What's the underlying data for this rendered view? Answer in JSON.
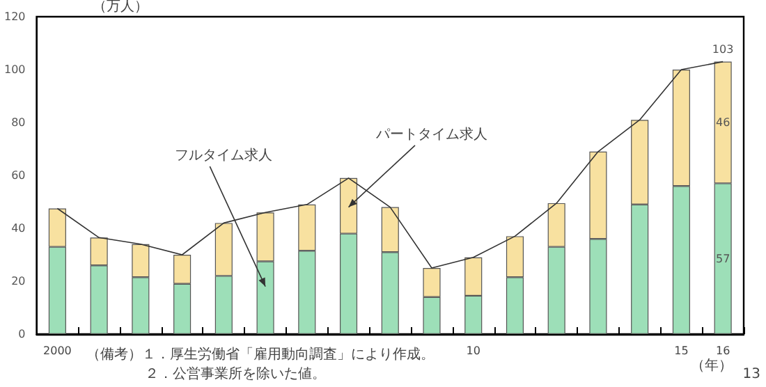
{
  "chart_data": {
    "type": "bar",
    "stacked": true,
    "ylabel": "（万人）",
    "xlabel": "（年）",
    "categories": [
      "2000",
      null,
      null,
      null,
      null,
      null,
      null,
      null,
      null,
      null,
      "10",
      null,
      null,
      null,
      null,
      "15",
      "16"
    ],
    "series": [
      {
        "name": "フルタイム求人",
        "color": "#9ddfb8",
        "values": [
          33,
          26,
          21.5,
          19,
          22,
          27.5,
          31.5,
          38,
          31,
          14,
          14.5,
          21.5,
          33,
          36,
          49,
          56,
          57
        ],
        "value_labels": [
          null,
          null,
          null,
          null,
          null,
          null,
          null,
          null,
          null,
          null,
          null,
          null,
          null,
          null,
          null,
          null,
          "57"
        ]
      },
      {
        "name": "パートタイム求人",
        "color": "#f8e1a0",
        "values": [
          14.5,
          10.5,
          12.5,
          11,
          20,
          18.5,
          17.5,
          21,
          17,
          11,
          14.5,
          15.5,
          16.5,
          33,
          32,
          44,
          46
        ],
        "value_labels": [
          null,
          null,
          null,
          null,
          null,
          null,
          null,
          null,
          null,
          null,
          null,
          null,
          null,
          null,
          null,
          null,
          "46"
        ]
      },
      {
        "type": "line",
        "color": "#333333",
        "values": [
          47.5,
          36.5,
          34,
          30,
          42,
          46,
          49,
          59,
          48,
          25,
          29,
          37,
          49.5,
          69,
          81,
          100,
          103
        ],
        "value_labels": [
          null,
          null,
          null,
          null,
          null,
          null,
          null,
          null,
          null,
          null,
          null,
          null,
          null,
          null,
          null,
          null,
          "103"
        ]
      }
    ],
    "ylim": [
      0,
      120
    ],
    "yticks": [
      0,
      20,
      40,
      60,
      80,
      100,
      120
    ],
    "grid": false,
    "legend": false,
    "marker": "none",
    "line_style": "solid",
    "annotations": [
      "（備考）１．厚生労働省「雇用動向調査」により作成。",
      "２．公営事業所を除いた値。",
      "13"
    ]
  }
}
